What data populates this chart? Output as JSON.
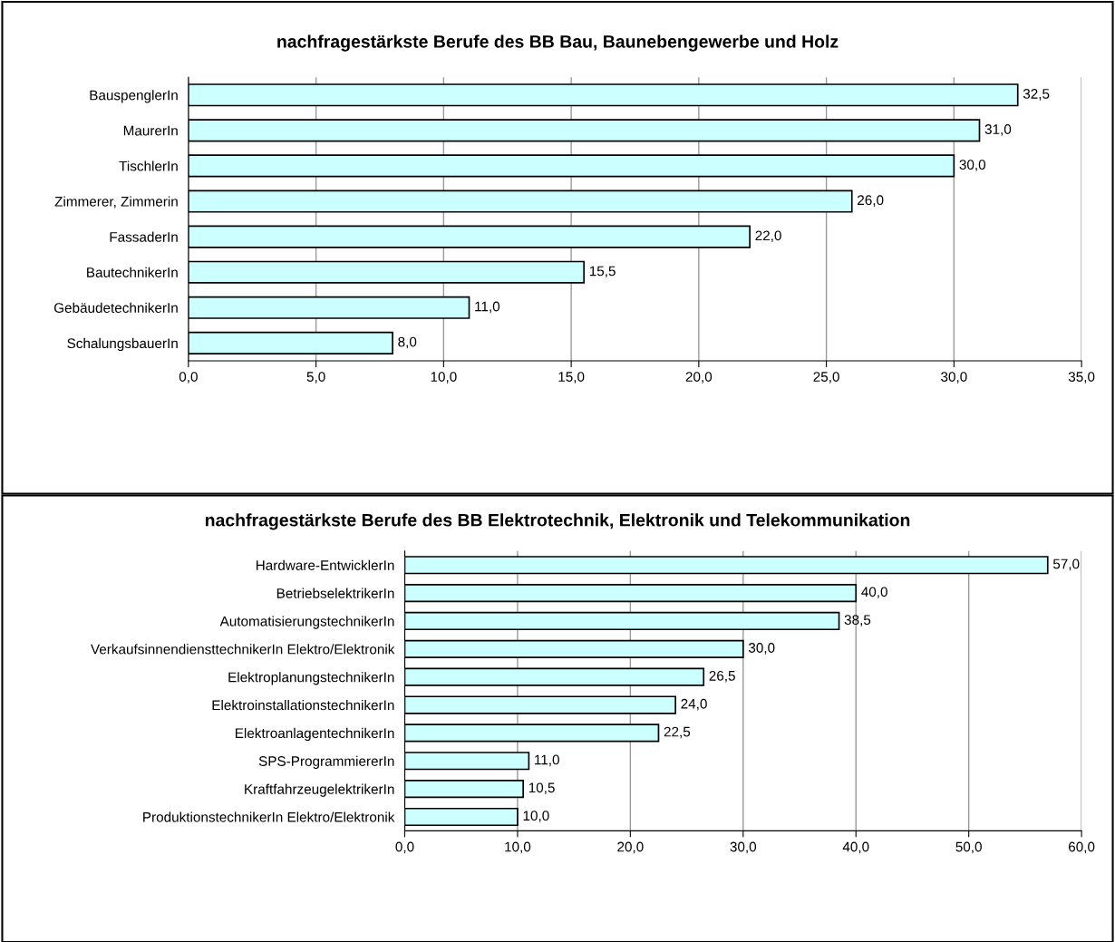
{
  "chart_data": [
    {
      "type": "bar",
      "orientation": "horizontal",
      "title": "nachfragestärkste Berufe des BB Bau, Baunebengewerbe und Holz",
      "categories": [
        "BauspenglerIn",
        "MaurerIn",
        "TischlerIn",
        "Zimmerer, Zimmerin",
        "FassaderIn",
        "BautechnikerIn",
        "GebäudetechnikerIn",
        "SchalungsbauerIn"
      ],
      "values": [
        32.5,
        31.0,
        30.0,
        26.0,
        22.0,
        15.5,
        11.0,
        8.0
      ],
      "value_labels": [
        "32,5",
        "31,0",
        "30,0",
        "26,0",
        "22,0",
        "15,5",
        "11,0",
        "8,0"
      ],
      "color": "#ccffff",
      "xlim": [
        0,
        35
      ],
      "xticks": [
        {
          "value": 0,
          "label": "0,0"
        },
        {
          "value": 5,
          "label": "5,0"
        },
        {
          "value": 10,
          "label": "10,0"
        },
        {
          "value": 15,
          "label": "15,0"
        },
        {
          "value": 20,
          "label": "20,0"
        },
        {
          "value": 25,
          "label": "25,0"
        },
        {
          "value": 30,
          "label": "30,0"
        },
        {
          "value": 35,
          "label": "35,0"
        }
      ],
      "grid": "x",
      "legend": false
    },
    {
      "type": "bar",
      "orientation": "horizontal",
      "title": "nachfragestärkste Berufe des BB Elektrotechnik, Elektronik und Telekommunikation",
      "categories": [
        "Hardware-EntwicklerIn",
        "BetriebselektrikerIn",
        "AutomatisierungstechnikerIn",
        "VerkaufsinnendiensttechnikerIn Elektro/Elektronik",
        "ElektroplanungstechnikerIn",
        "ElektroinstallationstechnikerIn",
        "ElektroanlagentechnikerIn",
        "SPS-ProgrammiererIn",
        "KraftfahrzeugelektrikerIn",
        "ProduktionstechnikerIn Elektro/Elektronik"
      ],
      "values": [
        57.0,
        40.0,
        38.5,
        30.0,
        26.5,
        24.0,
        22.5,
        11.0,
        10.5,
        10.0
      ],
      "value_labels": [
        "57,0",
        "40,0",
        "38,5",
        "30,0",
        "26,5",
        "24,0",
        "22,5",
        "11,0",
        "10,5",
        "10,0"
      ],
      "color": "#ccffff",
      "xlim": [
        0,
        60
      ],
      "xticks": [
        {
          "value": 0,
          "label": "0,0"
        },
        {
          "value": 10,
          "label": "10,0"
        },
        {
          "value": 20,
          "label": "20,0"
        },
        {
          "value": 30,
          "label": "30,0"
        },
        {
          "value": 40,
          "label": "40,0"
        },
        {
          "value": 50,
          "label": "50,0"
        },
        {
          "value": 60,
          "label": "60,0"
        }
      ],
      "grid": "x",
      "legend": false
    }
  ]
}
